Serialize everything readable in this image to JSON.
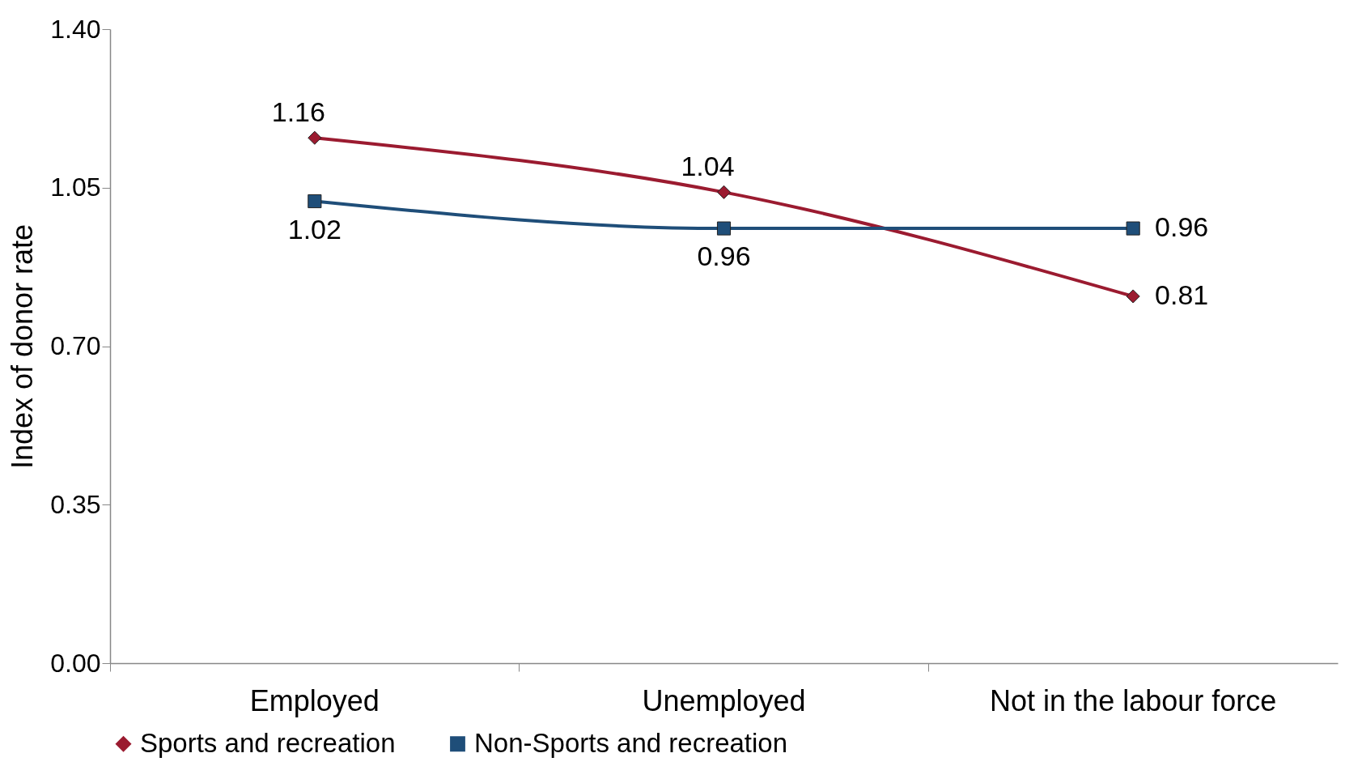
{
  "chart_data": {
    "type": "line",
    "ylabel": "Index of donor rate",
    "categories": [
      "Employed",
      "Unemployed",
      "Not in the labour force"
    ],
    "series": [
      {
        "name": "Sports and recreation",
        "color": "#9b1b30",
        "marker": "diamond",
        "values": [
          1.16,
          1.04,
          0.81
        ]
      },
      {
        "name": "Non-Sports and recreation",
        "color": "#1f4e79",
        "marker": "square",
        "values": [
          1.02,
          0.96,
          0.96
        ]
      }
    ],
    "ylim": [
      0,
      1.4
    ],
    "yticks": [
      {
        "value": 0,
        "label": "0.00"
      },
      {
        "value": 0.35,
        "label": "0.35"
      },
      {
        "value": 0.7,
        "label": "0.70"
      },
      {
        "value": 1.05,
        "label": "1.05"
      },
      {
        "value": 1.4,
        "label": "1.40"
      }
    ],
    "data_labels": true,
    "grid": false,
    "legend": "bottom",
    "line_style": "solid"
  }
}
